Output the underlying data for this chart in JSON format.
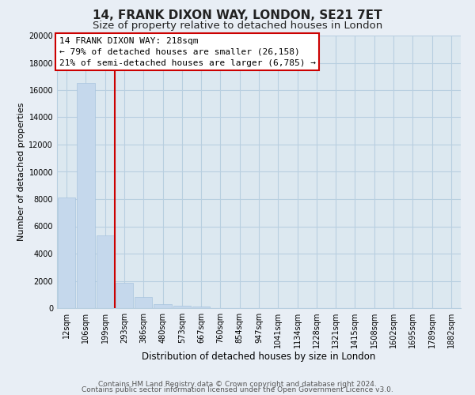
{
  "title": "14, FRANK DIXON WAY, LONDON, SE21 7ET",
  "subtitle": "Size of property relative to detached houses in London",
  "xlabel": "Distribution of detached houses by size in London",
  "ylabel": "Number of detached properties",
  "bar_labels": [
    "12sqm",
    "106sqm",
    "199sqm",
    "293sqm",
    "386sqm",
    "480sqm",
    "573sqm",
    "667sqm",
    "760sqm",
    "854sqm",
    "947sqm",
    "1041sqm",
    "1134sqm",
    "1228sqm",
    "1321sqm",
    "1415sqm",
    "1508sqm",
    "1602sqm",
    "1695sqm",
    "1789sqm",
    "1882sqm"
  ],
  "bar_values": [
    8100,
    16500,
    5350,
    1850,
    800,
    290,
    200,
    130,
    0,
    0,
    0,
    0,
    0,
    0,
    0,
    0,
    0,
    0,
    0,
    0,
    0
  ],
  "bar_color": "#c5d8ec",
  "bar_edge_color": "#a8c4de",
  "vline_color": "#cc0000",
  "vline_pos": 2.5,
  "ylim": [
    0,
    20000
  ],
  "yticks": [
    0,
    2000,
    4000,
    6000,
    8000,
    10000,
    12000,
    14000,
    16000,
    18000,
    20000
  ],
  "annotation_title": "14 FRANK DIXON WAY: 218sqm",
  "annotation_line1": "← 79% of detached houses are smaller (26,158)",
  "annotation_line2": "21% of semi-detached houses are larger (6,785) →",
  "annotation_box_facecolor": "#ffffff",
  "annotation_box_edgecolor": "#cc0000",
  "footer1": "Contains HM Land Registry data © Crown copyright and database right 2024.",
  "footer2": "Contains public sector information licensed under the Open Government Licence v3.0.",
  "bg_color": "#e8eef5",
  "plot_bg_color": "#dce8f0",
  "grid_color": "#b8cfe0",
  "title_fontsize": 11,
  "subtitle_fontsize": 9.5,
  "xlabel_fontsize": 8.5,
  "ylabel_fontsize": 8,
  "tick_fontsize": 7,
  "annotation_fontsize": 8,
  "footer_fontsize": 6.5
}
